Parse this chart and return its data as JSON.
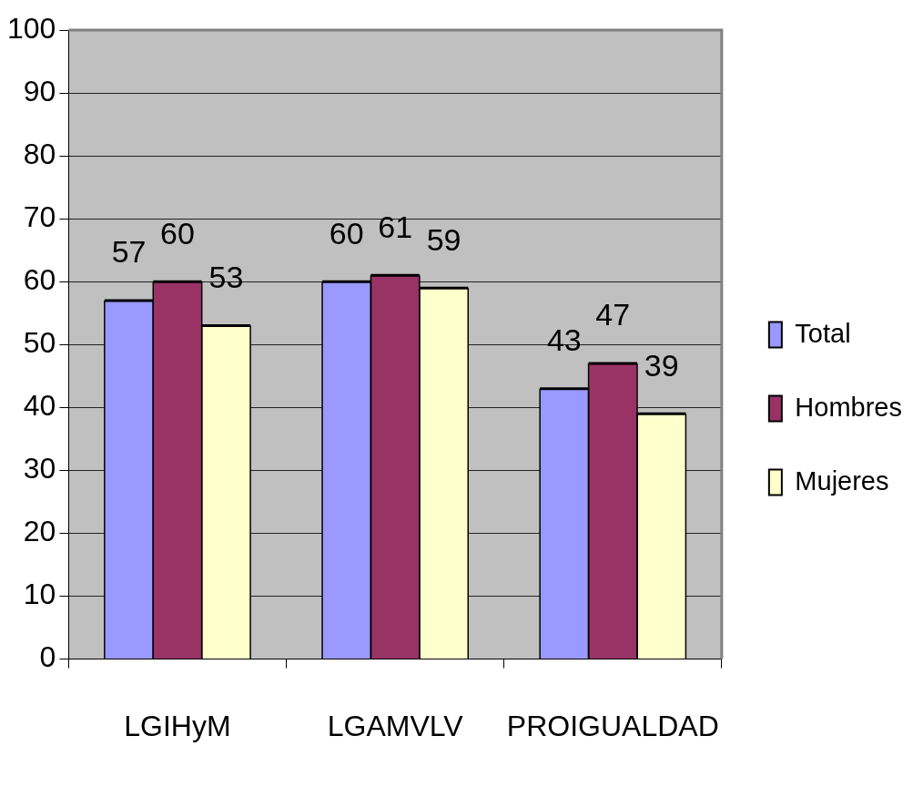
{
  "chart_data": {
    "type": "bar",
    "categories": [
      "LGIHyM",
      "LGAMVLV",
      "PROIGUALDAD"
    ],
    "series": [
      {
        "name": "Total",
        "color": "#9999ff",
        "values": [
          57,
          60,
          43
        ]
      },
      {
        "name": "Hombres",
        "color": "#993366",
        "values": [
          60,
          61,
          47
        ]
      },
      {
        "name": "Mujeres",
        "color": "#ffffcc",
        "values": [
          53,
          59,
          39
        ]
      }
    ],
    "ylim": [
      0,
      100
    ],
    "yticks": [
      0,
      10,
      20,
      30,
      40,
      50,
      60,
      70,
      80,
      90,
      100
    ],
    "grid": "y",
    "legend": "right",
    "data_labels": true
  }
}
